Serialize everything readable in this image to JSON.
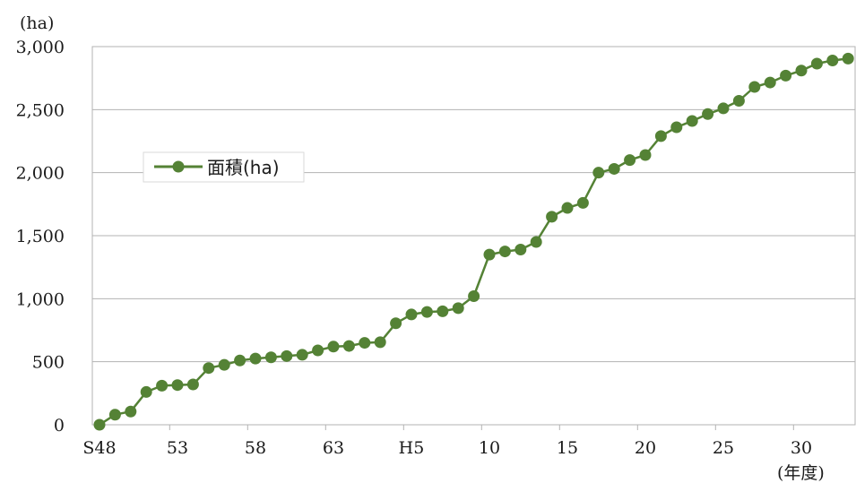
{
  "chart_data": {
    "type": "line",
    "y_unit_label": "(ha)",
    "x_unit_label": "(年度)",
    "ylim": [
      0,
      3000
    ],
    "y_ticks": [
      {
        "value": 0,
        "label": "0"
      },
      {
        "value": 500,
        "label": "500"
      },
      {
        "value": 1000,
        "label": "1,000"
      },
      {
        "value": 1500,
        "label": "1,500"
      },
      {
        "value": 2000,
        "label": "2,000"
      },
      {
        "value": 2500,
        "label": "2,500"
      },
      {
        "value": 3000,
        "label": "3,000"
      }
    ],
    "x_tick_labels": [
      {
        "index": 0,
        "label": "S48"
      },
      {
        "index": 5,
        "label": "53"
      },
      {
        "index": 10,
        "label": "58"
      },
      {
        "index": 15,
        "label": "63"
      },
      {
        "index": 20,
        "label": "H5"
      },
      {
        "index": 25,
        "label": "10"
      },
      {
        "index": 30,
        "label": "15"
      },
      {
        "index": 35,
        "label": "20"
      },
      {
        "index": 40,
        "label": "25"
      },
      {
        "index": 45,
        "label": "30"
      }
    ],
    "grid": true,
    "legend_position": "left, upper-middle",
    "series": [
      {
        "name": "面積(ha)",
        "color": "#548235",
        "values": [
          0,
          80,
          105,
          260,
          310,
          315,
          320,
          450,
          475,
          510,
          525,
          535,
          545,
          555,
          590,
          620,
          625,
          650,
          655,
          805,
          875,
          895,
          900,
          925,
          1020,
          1350,
          1375,
          1390,
          1450,
          1650,
          1720,
          1760,
          2000,
          2030,
          2100,
          2140,
          2290,
          2360,
          2410,
          2465,
          2510,
          2570,
          2680,
          2715,
          2770,
          2810,
          2865,
          2890,
          2905
        ]
      }
    ]
  }
}
